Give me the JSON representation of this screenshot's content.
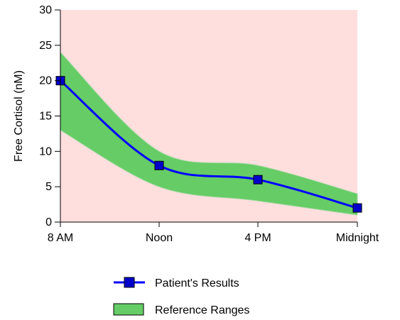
{
  "chart_data": {
    "type": "line",
    "title": "",
    "xlabel": "",
    "ylabel": "Free Cortisol (nM)",
    "categories": [
      "8 AM",
      "Noon",
      "4 PM",
      "Midnight"
    ],
    "ylim": [
      0,
      30
    ],
    "yticks": [
      0,
      5,
      10,
      15,
      20,
      25,
      30
    ],
    "grid": false,
    "legend_position": "bottom",
    "series": [
      {
        "name": "Patient's Results",
        "type": "line",
        "values": [
          20,
          8,
          6,
          2
        ],
        "color": "#0000ff",
        "marker_color": "#0000cc"
      },
      {
        "name": "Reference Ranges",
        "type": "band",
        "upper": [
          24,
          10,
          8,
          4
        ],
        "lower": [
          13,
          5,
          3,
          1
        ],
        "color": "#66cc66"
      }
    ],
    "plot_background": "#ffdede"
  }
}
